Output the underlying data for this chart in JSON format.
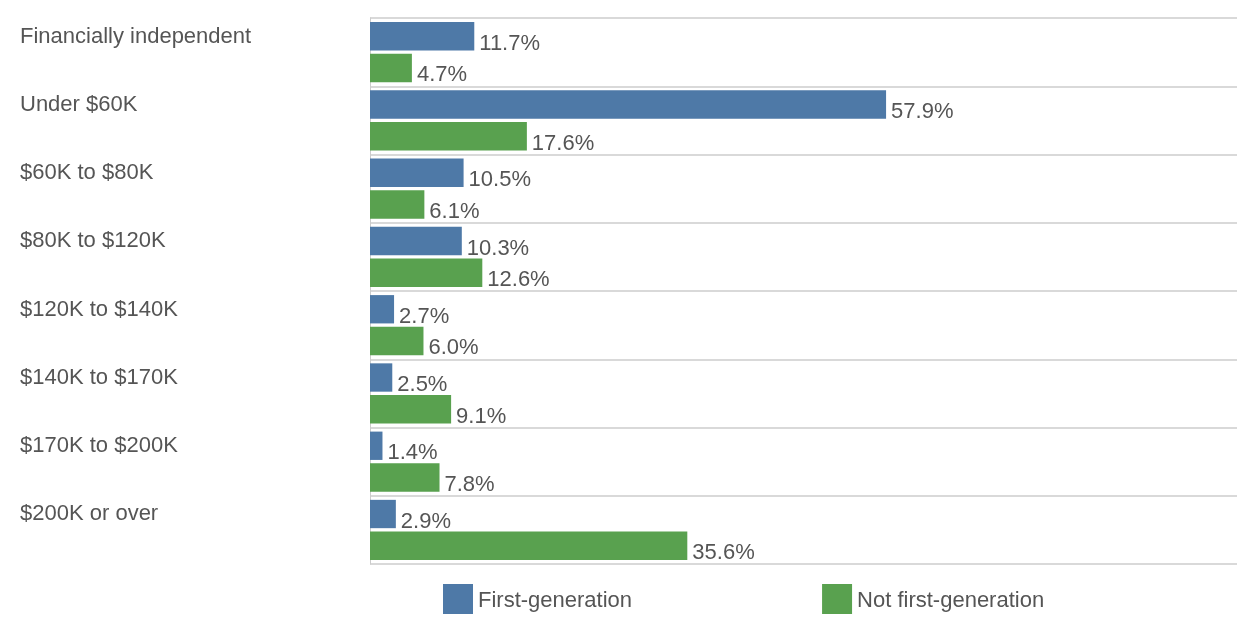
{
  "chart_data": {
    "type": "bar",
    "orientation": "horizontal",
    "categories": [
      "Financially independent",
      "Under $60K",
      "$60K to $80K",
      "$80K to $120K",
      "$120K to $140K",
      "$140K to $170K",
      "$170K to $200K",
      "$200K or over"
    ],
    "series": [
      {
        "name": "First-generation",
        "color": "#4e79a7",
        "values": [
          11.7,
          57.9,
          10.5,
          10.3,
          2.7,
          2.5,
          1.4,
          2.9
        ],
        "value_labels": [
          "11.7%",
          "57.9%",
          "10.5%",
          "10.3%",
          "2.7%",
          "2.5%",
          "1.4%",
          "2.9%"
        ]
      },
      {
        "name": "Not first-generation",
        "color": "#59a14f",
        "values": [
          4.7,
          17.6,
          6.1,
          12.6,
          6.0,
          9.1,
          7.8,
          35.6
        ],
        "value_labels": [
          "4.7%",
          "17.6%",
          "6.1%",
          "12.6%",
          "6.0%",
          "9.1%",
          "7.8%",
          "35.6%"
        ]
      }
    ],
    "grid": "y",
    "legend": "bottom"
  }
}
